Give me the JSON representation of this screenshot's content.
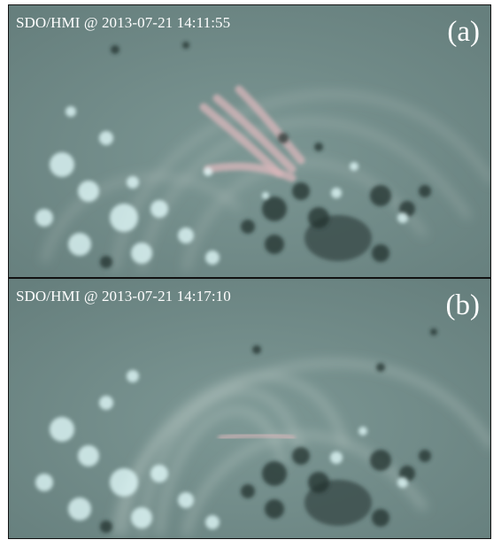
{
  "panels": [
    {
      "timestamp": "SDO/HMI @ 2013-07-21 14:11:55",
      "tag": "(a)"
    },
    {
      "timestamp": "SDO/HMI @ 2013-07-21 14:17:10",
      "tag": "(b)"
    }
  ],
  "colors": {
    "background": "#6f8a88",
    "loop": "#b9c7c4",
    "flare_ribbon": "#d9b7bb",
    "positive_polarity": "#e6ffff",
    "negative_polarity": "#20302f",
    "sunspot": "#3c4f4e"
  }
}
